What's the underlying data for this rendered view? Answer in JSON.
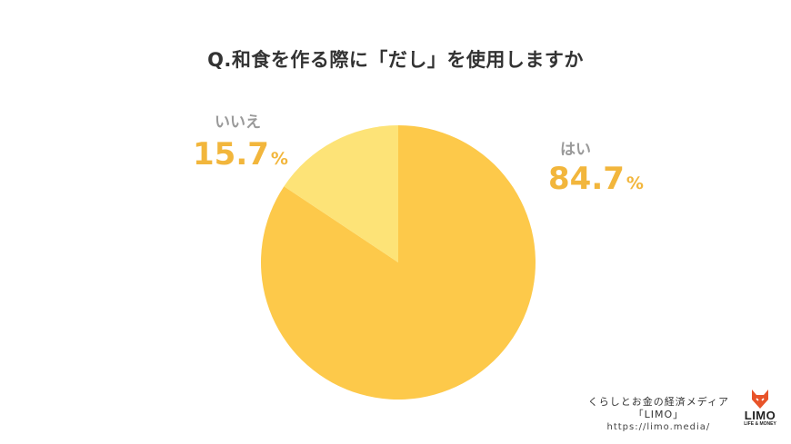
{
  "chart_data": {
    "type": "pie",
    "title": "Q.和食を作る際に「だし」を使用しますか",
    "slices": [
      {
        "label": "はい",
        "value": 84.7,
        "display": "84.7",
        "unit": "%",
        "color": "#fdc94a"
      },
      {
        "label": "いいえ",
        "value": 15.7,
        "display": "15.7",
        "unit": "%",
        "color": "#fde377"
      }
    ]
  },
  "credit": {
    "line1": "くらしとお金の経済メディア",
    "line2": "「LIMO」",
    "url": "https://limo.media/"
  },
  "logo": {
    "icon": "fox-icon",
    "word": "LIMO",
    "tagline": "LIFE & MONEY",
    "color": "#e8542a"
  }
}
